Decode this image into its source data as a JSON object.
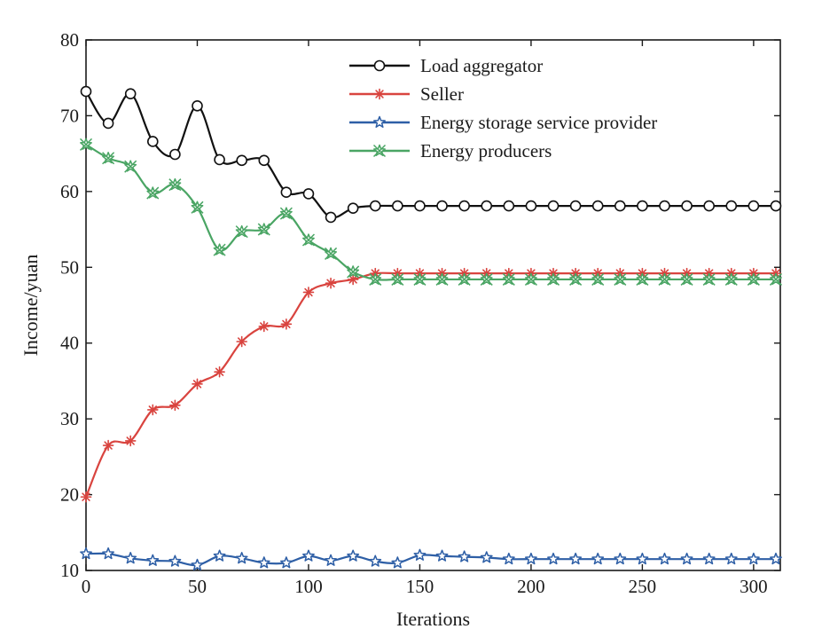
{
  "chart_data": {
    "type": "line",
    "title": "",
    "xlabel": "Iterations",
    "ylabel": "Income/yuan",
    "xlim": [
      0,
      312
    ],
    "ylim": [
      10,
      80
    ],
    "xticks": [
      0,
      50,
      100,
      150,
      200,
      250,
      300
    ],
    "yticks": [
      10,
      20,
      30,
      40,
      50,
      60,
      70,
      80
    ],
    "grid": false,
    "legend_position": "top-right",
    "x": [
      0,
      10,
      20,
      30,
      40,
      50,
      60,
      70,
      80,
      90,
      100,
      110,
      120,
      130,
      140,
      150,
      160,
      170,
      180,
      190,
      200,
      210,
      220,
      230,
      240,
      250,
      260,
      270,
      280,
      290,
      300,
      310
    ],
    "series": [
      {
        "name": "Load aggregator",
        "color": "#111111",
        "marker": "circle",
        "values": [
          73.2,
          69.0,
          72.9,
          66.6,
          64.9,
          71.3,
          64.2,
          64.1,
          64.1,
          59.9,
          59.7,
          56.6,
          57.8,
          58.1,
          58.1,
          58.1,
          58.1,
          58.1,
          58.1,
          58.1,
          58.1,
          58.1,
          58.1,
          58.1,
          58.1,
          58.1,
          58.1,
          58.1,
          58.1,
          58.1,
          58.1,
          58.1
        ]
      },
      {
        "name": "Seller",
        "color": "#d9443f",
        "marker": "asterisk",
        "values": [
          19.7,
          26.5,
          27.1,
          31.2,
          31.8,
          34.6,
          36.2,
          40.2,
          42.2,
          42.5,
          46.7,
          47.9,
          48.4,
          49.2,
          49.2,
          49.2,
          49.2,
          49.2,
          49.2,
          49.2,
          49.2,
          49.2,
          49.2,
          49.2,
          49.2,
          49.2,
          49.2,
          49.2,
          49.2,
          49.2,
          49.2,
          49.2
        ]
      },
      {
        "name": "Energy storage service provider",
        "color": "#2e5fa6",
        "marker": "star",
        "values": [
          12.2,
          12.2,
          11.6,
          11.3,
          11.2,
          10.7,
          11.9,
          11.6,
          11.0,
          11.0,
          11.9,
          11.3,
          11.9,
          11.2,
          11.0,
          12.0,
          11.9,
          11.8,
          11.7,
          11.5,
          11.5,
          11.5,
          11.5,
          11.5,
          11.5,
          11.5,
          11.5,
          11.5,
          11.5,
          11.5,
          11.5,
          11.5
        ]
      },
      {
        "name": "Energy producers",
        "color": "#4aa564",
        "marker": "x-star",
        "values": [
          66.2,
          64.4,
          63.3,
          59.8,
          60.9,
          57.9,
          52.3,
          54.7,
          55.0,
          57.1,
          53.6,
          51.8,
          49.4,
          48.4,
          48.4,
          48.4,
          48.4,
          48.4,
          48.4,
          48.4,
          48.4,
          48.4,
          48.4,
          48.4,
          48.4,
          48.4,
          48.4,
          48.4,
          48.4,
          48.4,
          48.4,
          48.4
        ]
      }
    ]
  }
}
